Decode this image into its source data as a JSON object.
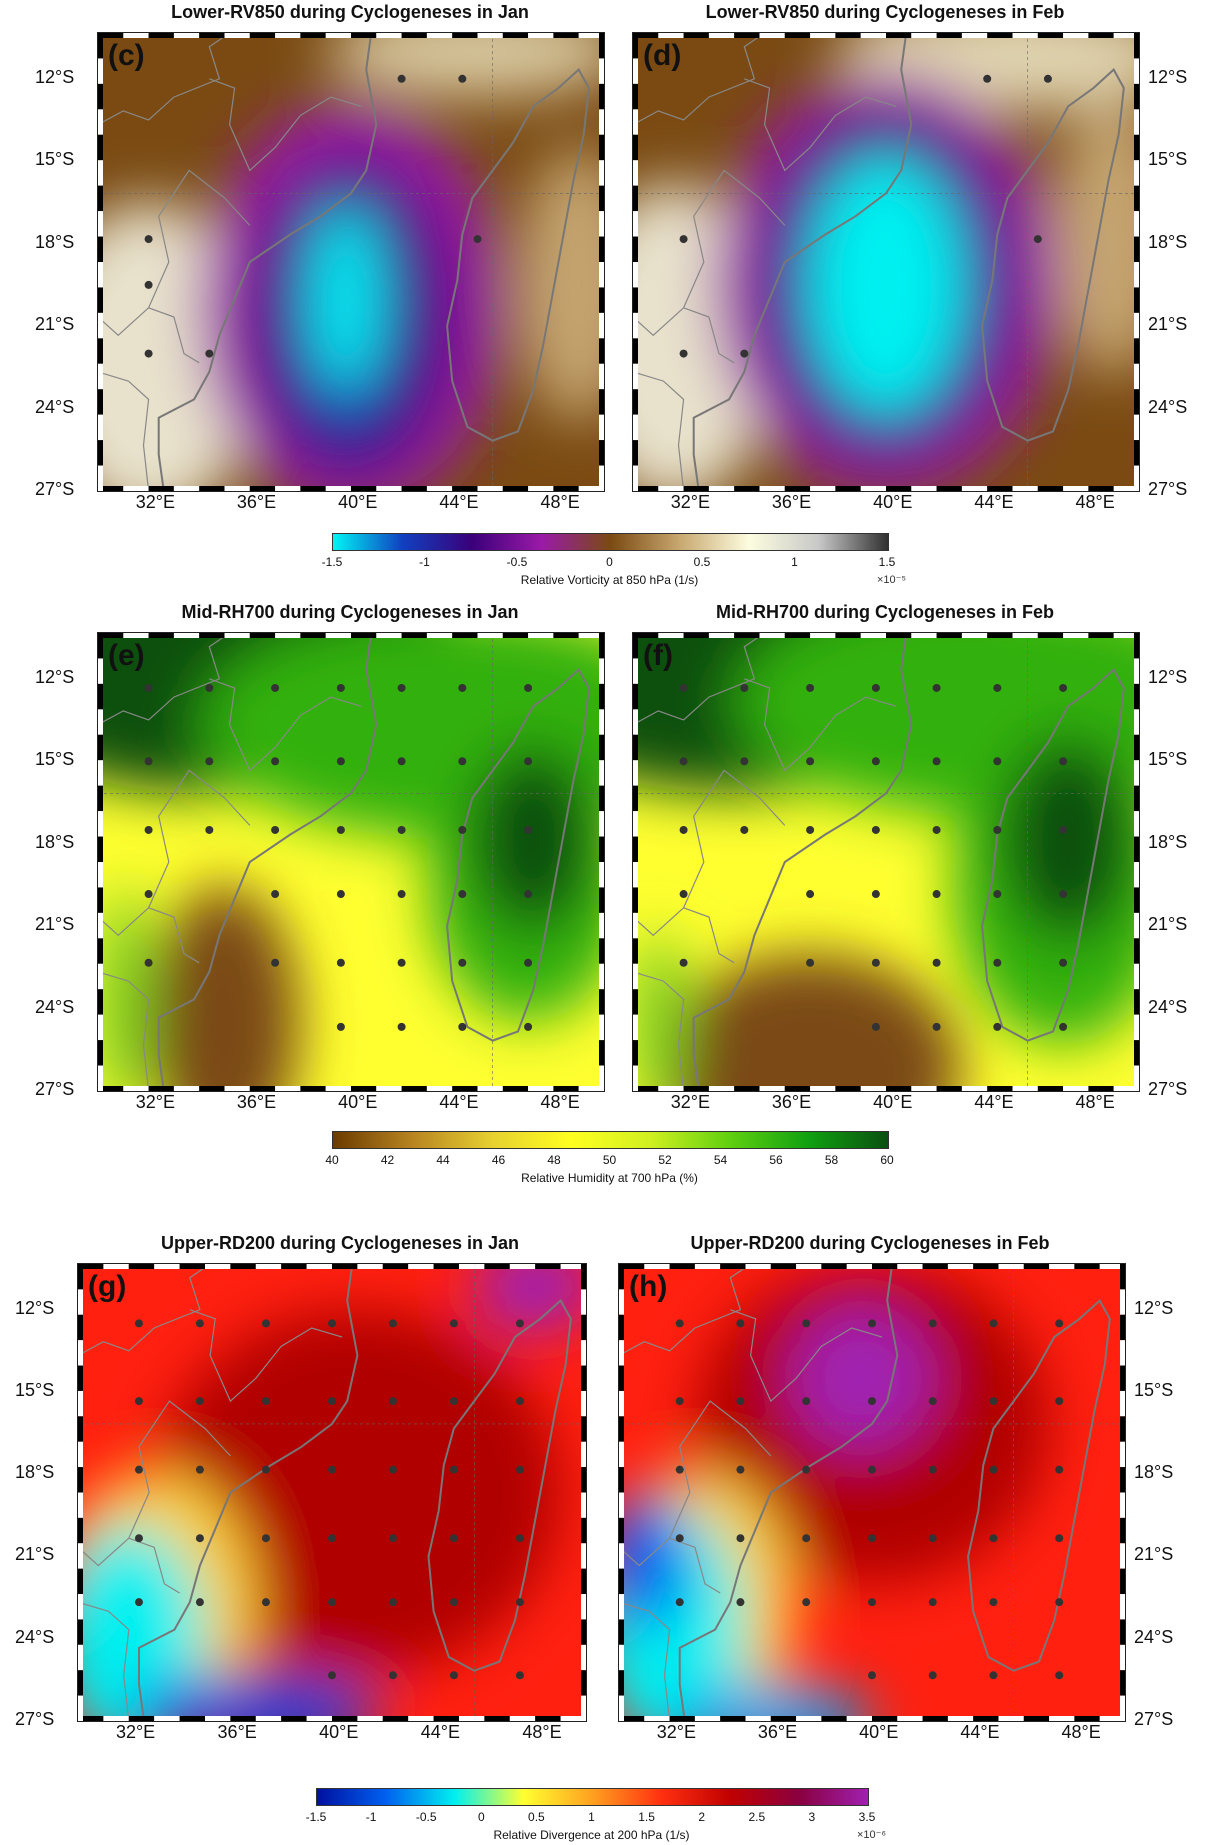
{
  "rows": [
    {
      "colorbar": {
        "ticks": [
          "-1.5",
          "-1",
          "-0.5",
          "0",
          "0.5",
          "1",
          "1.5"
        ],
        "title": "Relative Vorticity at 850 hPa (1/s)",
        "exponent": "×10⁻⁵",
        "colors": [
          "#00f5f5",
          "#1040c0",
          "#3a007a",
          "#9a1aa8",
          "#7a4a12",
          "#c8a870",
          "#fdfde0",
          "#c8c8c8",
          "#303030"
        ]
      },
      "panels": [
        {
          "title": "Lower-RV850 during Cyclogeneses in Jan",
          "letter": "(c)"
        },
        {
          "title": "Lower-RV850 during Cyclogeneses in Feb",
          "letter": "(d)"
        }
      ]
    },
    {
      "colorbar": {
        "ticks": [
          "40",
          "42",
          "44",
          "46",
          "48",
          "50",
          "52",
          "54",
          "56",
          "58",
          "60"
        ],
        "title": "Relative Humidity at 700 hPa (%)",
        "exponent": "",
        "colors": [
          "#6b3b00",
          "#b88420",
          "#e6d030",
          "#ffff20",
          "#d0f020",
          "#60d010",
          "#10a010",
          "#0a5010"
        ]
      },
      "panels": [
        {
          "title": "Mid-RH700 during Cyclogeneses in Jan",
          "letter": "(e)"
        },
        {
          "title": "Mid-RH700 during Cyclogeneses in Feb",
          "letter": "(f)"
        }
      ]
    },
    {
      "colorbar": {
        "ticks": [
          "-1.5",
          "-1",
          "-0.5",
          "0",
          "0.5",
          "1",
          "1.5",
          "2",
          "2.5",
          "3",
          "3.5"
        ],
        "title": "Relative Divergence at 200 hPa (1/s)",
        "exponent": "×10⁻⁶",
        "colors": [
          "#0010a0",
          "#0060f0",
          "#00f0f0",
          "#ffff30",
          "#ffa020",
          "#ff3010",
          "#c00000",
          "#8a0040",
          "#a020b0"
        ]
      },
      "panels": [
        {
          "title": "Upper-RD200 during Cyclogeneses in Jan",
          "letter": "(g)"
        },
        {
          "title": "Upper-RD200 during Cyclogeneses in Feb",
          "letter": "(h)"
        }
      ]
    }
  ],
  "axes": {
    "lon_ticks": [
      "32°E",
      "36°E",
      "40°E",
      "44°E",
      "48°E"
    ],
    "lat_ticks": [
      "12°S",
      "15°S",
      "18°S",
      "21°S",
      "24°S",
      "27°S"
    ]
  }
}
